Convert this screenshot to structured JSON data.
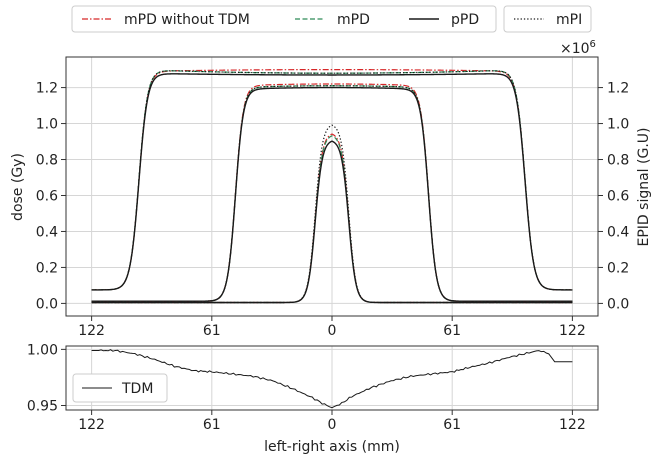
{
  "legend": {
    "entries": [
      {
        "label": "mPD without TDM",
        "color": "#d62728",
        "dash": "dashdot"
      },
      {
        "label": "mPD",
        "color": "#2e8b57",
        "dash": "dashed"
      },
      {
        "label": "pPD",
        "color": "#1a1a1a",
        "dash": "solid"
      },
      {
        "label": "mPI",
        "color": "#1a1a1a",
        "dash": "dotted"
      }
    ],
    "placement": "top"
  },
  "chart_data": [
    {
      "type": "line",
      "title": "",
      "xlabel": "",
      "ylabel": "dose (Gy)",
      "y2label": "EPID signal (G.U)",
      "y2_multiplier": "×10",
      "y2_multiplier_exp": "6",
      "xlim": [
        -135,
        135
      ],
      "ylim": [
        -0.07,
        1.37
      ],
      "x_ticks": [
        -122,
        -61,
        0,
        61,
        122
      ],
      "x_tick_labels": [
        "122",
        "61",
        "0",
        "61",
        "122"
      ],
      "y_ticks": [
        0.0,
        0.2,
        0.4,
        0.6,
        0.8,
        1.0,
        1.2
      ],
      "y_tick_labels": [
        "0.0",
        "0.2",
        "0.4",
        "0.6",
        "0.8",
        "1.0",
        "1.2"
      ],
      "y2_tick_labels": [
        "0.0",
        "0.2",
        "0.4",
        "0.6",
        "0.8",
        "1.0",
        "1.2"
      ],
      "grid": true,
      "profiles": [
        {
          "field": "large",
          "half_width": 98,
          "edge": 2.2,
          "tail": 0.075,
          "series": [
            {
              "name": "mPD without TDM",
              "center": 1.3,
              "shoulder": 1.29
            },
            {
              "name": "mPD",
              "center": 1.28,
              "shoulder": 1.3
            },
            {
              "name": "pPD",
              "center": 1.27,
              "shoulder": 1.28
            },
            {
              "name": "mPI",
              "center": 1.28,
              "shoulder": 1.3
            }
          ]
        },
        {
          "field": "medium",
          "half_width": 49,
          "edge": 2.0,
          "tail": 0.012,
          "series": [
            {
              "name": "mPD without TDM",
              "center": 1.22,
              "shoulder": 1.21
            },
            {
              "name": "mPD",
              "center": 1.21,
              "shoulder": 1.2
            },
            {
              "name": "pPD",
              "center": 1.2,
              "shoulder": 1.19
            },
            {
              "name": "mPI",
              "center": 1.21,
              "shoulder": 1.2
            }
          ]
        },
        {
          "field": "small",
          "half_width": 8.5,
          "edge": 1.8,
          "tail": 0.005,
          "series": [
            {
              "name": "mPD without TDM",
              "center": 0.95,
              "shoulder": 0.95
            },
            {
              "name": "mPD",
              "center": 0.94,
              "shoulder": 0.94
            },
            {
              "name": "pPD",
              "center": 0.91,
              "shoulder": 0.91
            },
            {
              "name": "mPI",
              "center": 1.0,
              "shoulder": 1.0
            }
          ]
        }
      ]
    },
    {
      "type": "line",
      "title": "",
      "xlabel": "left-right axis (mm)",
      "ylabel": "",
      "xlim": [
        -135,
        135
      ],
      "ylim": [
        0.946,
        1.003
      ],
      "x_ticks": [
        -122,
        -61,
        0,
        61,
        122
      ],
      "x_tick_labels": [
        "122",
        "61",
        "0",
        "61",
        "122"
      ],
      "y_ticks": [
        0.95,
        1.0
      ],
      "y_tick_labels": [
        "0.95",
        "1.00"
      ],
      "grid": true,
      "legend_placement": "bottom-left",
      "series": [
        {
          "name": "TDM",
          "color": "#1a1a1a",
          "x": [
            -122,
            -110,
            -100,
            -90,
            -80,
            -70,
            -61,
            -50,
            -40,
            -30,
            -20,
            -10,
            -5,
            0,
            5,
            10,
            20,
            30,
            40,
            50,
            61,
            70,
            80,
            90,
            100,
            105,
            110,
            113,
            122
          ],
          "y": [
            0.999,
            0.999,
            0.996,
            0.991,
            0.985,
            0.981,
            0.98,
            0.978,
            0.976,
            0.972,
            0.965,
            0.957,
            0.952,
            0.948,
            0.952,
            0.958,
            0.966,
            0.972,
            0.976,
            0.978,
            0.98,
            0.984,
            0.988,
            0.993,
            0.997,
            0.999,
            0.996,
            0.989,
            0.989
          ]
        }
      ]
    }
  ]
}
